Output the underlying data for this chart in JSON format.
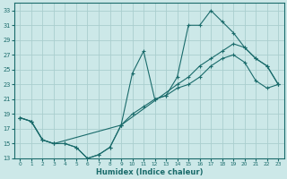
{
  "title": "",
  "xlabel": "Humidex (Indice chaleur)",
  "ylabel": "",
  "bg_color": "#cce8e8",
  "grid_color": "#aacece",
  "line_color": "#1a6b6b",
  "xlim": [
    -0.5,
    23.5
  ],
  "ylim": [
    13,
    34
  ],
  "yticks": [
    13,
    15,
    17,
    19,
    21,
    23,
    25,
    27,
    29,
    31,
    33
  ],
  "xticks": [
    0,
    1,
    2,
    3,
    4,
    5,
    6,
    7,
    8,
    9,
    10,
    11,
    12,
    13,
    14,
    15,
    16,
    17,
    18,
    19,
    20,
    21,
    22,
    23
  ],
  "line1_x": [
    0,
    1,
    2,
    3,
    4,
    5,
    6,
    7,
    8,
    9,
    10,
    11,
    12,
    13,
    14,
    15,
    16,
    17,
    18,
    19,
    20,
    21,
    22,
    23
  ],
  "line1_y": [
    18.5,
    18.0,
    15.5,
    15.0,
    15.0,
    14.5,
    13.0,
    13.5,
    14.5,
    17.5,
    24.5,
    27.5,
    21.0,
    21.5,
    24.0,
    31.0,
    31.0,
    33.0,
    31.5,
    30.0,
    28.0,
    26.5,
    25.5,
    23.0
  ],
  "line2_x": [
    0,
    1,
    2,
    3,
    4,
    5,
    6,
    7,
    8,
    9,
    10,
    11,
    12,
    13,
    14,
    15,
    16,
    17,
    18,
    19,
    20,
    21,
    22,
    23
  ],
  "line2_y": [
    18.5,
    18.0,
    15.5,
    15.0,
    15.0,
    14.5,
    13.0,
    13.5,
    14.5,
    17.5,
    19.0,
    20.0,
    21.0,
    21.5,
    22.5,
    23.0,
    24.0,
    25.5,
    26.5,
    27.0,
    26.0,
    23.5,
    22.5,
    23.0
  ],
  "line3_x": [
    0,
    1,
    2,
    3,
    9,
    14,
    15,
    16,
    17,
    18,
    19,
    20,
    21,
    22,
    23
  ],
  "line3_y": [
    18.5,
    18.0,
    15.5,
    15.0,
    17.5,
    23.0,
    24.0,
    25.5,
    26.5,
    27.5,
    28.5,
    28.0,
    26.5,
    25.5,
    23.0
  ]
}
